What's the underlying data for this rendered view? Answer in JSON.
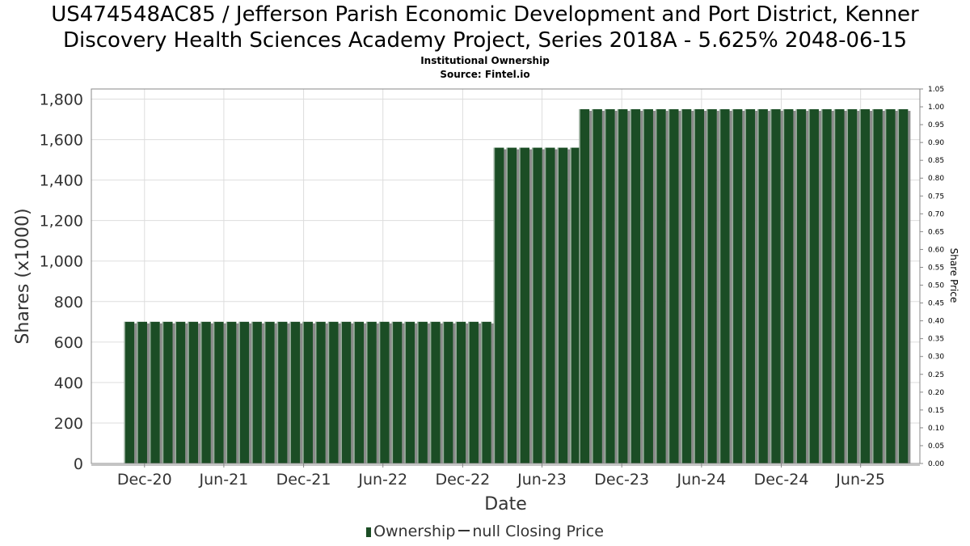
{
  "header": {
    "title_line1": "US474548AC85 / Jefferson Parish Economic Development and Port District, Kenner",
    "title_line2": "Discovery Health Sciences Academy Project, Series 2018A - 5.625% 2048-06-15",
    "subtitle_line1": "Institutional Ownership",
    "subtitle_line2": "Source: Fintel.io"
  },
  "legend": {
    "ownership_label": "Ownership",
    "price_label": "null Closing Price"
  },
  "colors": {
    "bar": "#1b4d25",
    "bar_highlight": "#ffffff",
    "bar_shadow": "#8a8a8a",
    "grid": "#dddddd"
  },
  "chart_data": {
    "type": "bar",
    "title": "US474548AC85 / Jefferson Parish Economic Development and Port District, Kenner Discovery Health Sciences Academy Project, Series 2018A - 5.625% 2048-06-15",
    "xlabel": "Date",
    "ylabel": "Shares (x1000)",
    "y2label": "Share Price",
    "ylim": [
      0,
      1850
    ],
    "y2lim": [
      0,
      1.05
    ],
    "yticks": [
      0,
      200,
      400,
      600,
      800,
      1000,
      1200,
      1400,
      1600,
      1800
    ],
    "ytick_labels": [
      "0",
      "200",
      "400",
      "600",
      "800",
      "1,000",
      "1,200",
      "1,400",
      "1,600",
      "1,800"
    ],
    "y2ticks": [
      "0.00",
      "0.05",
      "0.10",
      "0.15",
      "0.20",
      "0.25",
      "0.30",
      "0.35",
      "0.40",
      "0.45",
      "0.50",
      "0.55",
      "0.60",
      "0.65",
      "0.70",
      "0.75",
      "0.80",
      "0.85",
      "0.90",
      "0.95",
      "1.00",
      "1.05"
    ],
    "xrange": [
      "2020-08-01",
      "2025-10-15"
    ],
    "xticks": [
      {
        "label": "Dec-20",
        "date": "2020-12-01"
      },
      {
        "label": "Jun-21",
        "date": "2021-06-01"
      },
      {
        "label": "Dec-21",
        "date": "2021-12-01"
      },
      {
        "label": "Jun-22",
        "date": "2022-06-01"
      },
      {
        "label": "Dec-22",
        "date": "2022-12-01"
      },
      {
        "label": "Jun-23",
        "date": "2023-06-01"
      },
      {
        "label": "Dec-23",
        "date": "2023-12-01"
      },
      {
        "label": "Jun-24",
        "date": "2024-06-01"
      },
      {
        "label": "Dec-24",
        "date": "2024-12-01"
      },
      {
        "label": "Jun-25",
        "date": "2025-06-01"
      }
    ],
    "grid": true,
    "legend_position": "bottom-center",
    "series": [
      {
        "name": "Ownership",
        "periods": [
          {
            "start": "2020-10-15",
            "end": "2023-02-10",
            "value": 700
          },
          {
            "start": "2023-02-10",
            "end": "2023-08-25",
            "value": 1560
          },
          {
            "start": "2023-08-25",
            "end": "2025-09-30",
            "value": 1750
          }
        ]
      },
      {
        "name": "null Closing Price",
        "values": []
      }
    ]
  }
}
